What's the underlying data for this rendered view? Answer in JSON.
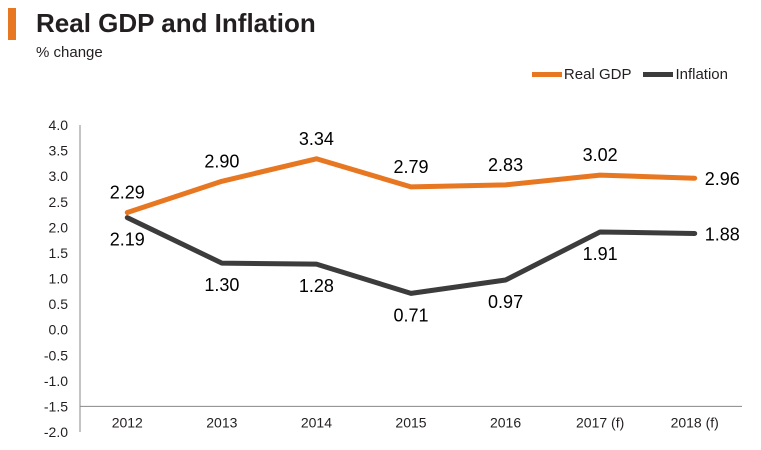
{
  "header": {
    "title": "Real GDP and Inflation",
    "subtitle": "% change"
  },
  "colors": {
    "accent": "#E87722",
    "real_gdp": "#E87722",
    "inflation": "#3C3C3C",
    "axis": "#888888"
  },
  "chart_data": {
    "type": "line",
    "title": "Real GDP and Inflation",
    "subtitle": "% change",
    "xlabel": "",
    "ylabel": "% change",
    "categories": [
      "2012",
      "2013",
      "2014",
      "2015",
      "2016",
      "2017 (f)",
      "2018 (f)"
    ],
    "ylim": [
      -2.0,
      4.0
    ],
    "yticks": [
      "4.0",
      "3.5",
      "3.0",
      "2.5",
      "2.0",
      "1.5",
      "1.0",
      "0.5",
      "0.0",
      "-0.5",
      "-1.0",
      "-1.5",
      "-2.0"
    ],
    "legend_position": "top-right",
    "grid": false,
    "series": [
      {
        "name": "Real GDP",
        "values": [
          2.29,
          2.9,
          3.34,
          2.79,
          2.83,
          3.02,
          2.96
        ],
        "labels": [
          "2.29",
          "2.90",
          "3.34",
          "2.79",
          "2.83",
          "3.02",
          "2.96"
        ],
        "label_placement": [
          "above",
          "above",
          "above",
          "above",
          "above",
          "above",
          "right"
        ]
      },
      {
        "name": "Inflation",
        "values": [
          2.19,
          1.3,
          1.28,
          0.71,
          0.97,
          1.91,
          1.88
        ],
        "labels": [
          "2.19",
          "1.30",
          "1.28",
          "0.71",
          "0.97",
          "1.91",
          "1.88"
        ],
        "label_placement": [
          "below",
          "below",
          "below",
          "below",
          "below",
          "below",
          "right"
        ]
      }
    ]
  }
}
